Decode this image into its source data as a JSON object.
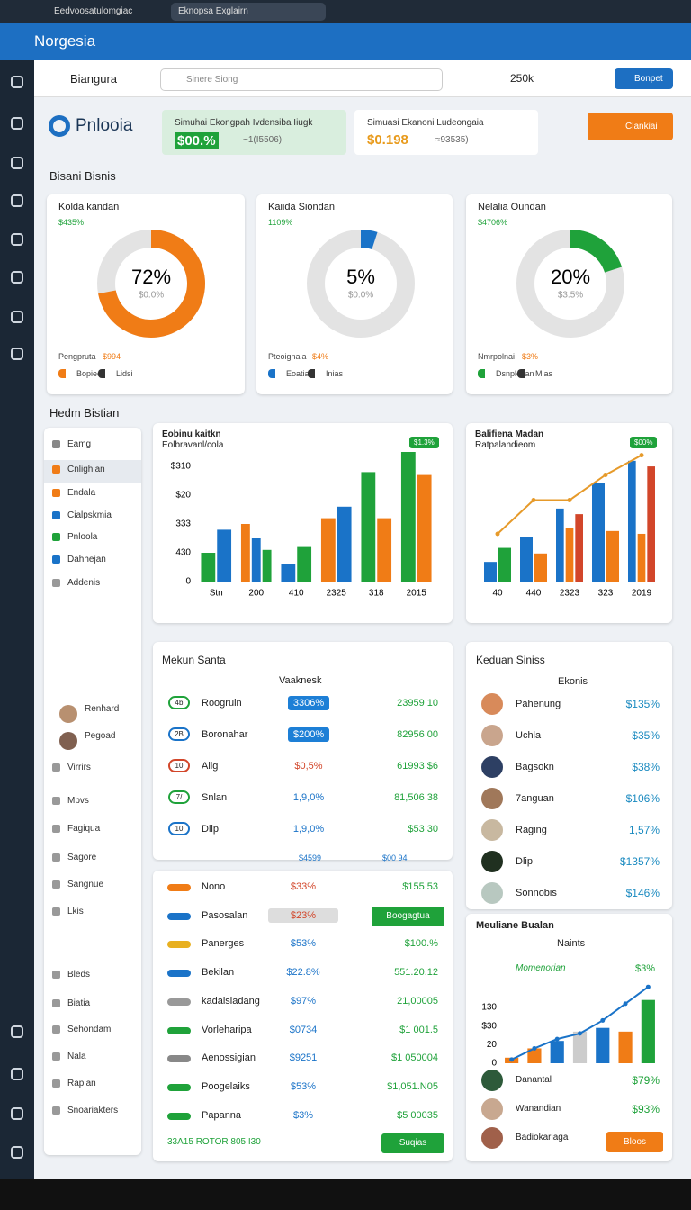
{
  "browser": {
    "tabs": [
      "Eedvoosatulomgiac",
      "Eknopsa Exglairn"
    ]
  },
  "app": {
    "name": "Norgesia"
  },
  "topbar": {
    "title": "Biangura",
    "search": "Sinere Siong",
    "balance": "250k",
    "button": "Bonpet"
  },
  "brand": {
    "name": "Pnlooia",
    "cards": [
      {
        "title": "Simuhai Ekongpah Ivdensiba Iiugk",
        "value": "$00.%",
        "sub": "~1(I5506)"
      },
      {
        "title": "Simuasi Ekanoni Ludeongaia",
        "value": "$0.198",
        "sub": "≈93535)"
      }
    ],
    "button": "Clankiai"
  },
  "sections": [
    "Bisani Bisnis",
    "Hedm Bistian"
  ],
  "donuts": [
    {
      "title": "Kolda kandan",
      "sub": "$435%",
      "value": 72,
      "value_label": "72%",
      "caption": "$0.0%",
      "color": "#f07c16",
      "footer": "Pengpruta",
      "footer_value": "$994",
      "legend": [
        "Bopiec",
        "Lidsi"
      ]
    },
    {
      "title": "Kaiida Siondan",
      "sub": "1109%",
      "value": 5,
      "value_label": "5%",
      "caption": "$0.0%",
      "color": "#1a73c8",
      "footer": "Pteoignaia",
      "footer_value": "$4%",
      "legend": [
        "Eoatia",
        "Inias"
      ]
    },
    {
      "title": "Nelalia Oundan",
      "sub": "$4706%",
      "value": 20,
      "value_label": "20%",
      "caption": "$3.5%",
      "color": "#1fa23a",
      "footer": "Nmrpolnai",
      "footer_value": "$3%",
      "legend": [
        "Dsnplesan",
        "Mias"
      ]
    }
  ],
  "bar_charts": [
    {
      "type": "bar",
      "title": "Eobinu kaitkn",
      "subtitle": "Eolbravanl/cola",
      "badge": "$1.3%",
      "categories": [
        "Stn",
        "200",
        "410",
        "2325",
        "318",
        "2015"
      ],
      "series": [
        {
          "color": "#1fa23a",
          "values": [
            1.0,
            null,
            null,
            null,
            3.8,
            4.5
          ]
        },
        {
          "color": "#f07c16",
          "values": [
            null,
            2.0,
            null,
            2.2,
            2.2,
            3.7
          ]
        },
        {
          "color": "#1a73c8",
          "values": [
            1.8,
            1.5,
            0.6,
            2.6,
            null,
            null
          ]
        },
        {
          "color": "#1fa23a",
          "values": [
            null,
            1.1,
            1.2,
            null,
            null,
            null
          ]
        }
      ],
      "ylim": [
        0,
        5
      ],
      "yticks": [
        {
          "value": 4,
          "label": "$310"
        },
        {
          "value": 3,
          "label": "$20"
        },
        {
          "value": 2,
          "label": "333"
        },
        {
          "value": 1,
          "label": "430"
        },
        0
      ]
    },
    {
      "type": "bar",
      "title": "Balifiena Madan",
      "subtitle": "Ratpalandieom",
      "badge": "$00%",
      "categories": [
        "40",
        "440",
        "2323",
        "323",
        "2019"
      ],
      "series": [
        {
          "color": "#1a73c8",
          "values": [
            0.7,
            1.6,
            2.6,
            3.5,
            4.3
          ]
        },
        {
          "color": "#1fa23a",
          "values": [
            1.2,
            null,
            null,
            null,
            null
          ]
        },
        {
          "color": "#f07c16",
          "values": [
            null,
            1.0,
            1.9,
            1.8,
            1.7
          ]
        },
        {
          "color": "#d2462a",
          "values": [
            null,
            null,
            2.4,
            null,
            4.1
          ]
        }
      ],
      "line": {
        "color": "#e69a2a",
        "values": [
          1.7,
          2.9,
          2.9,
          3.8,
          4.5
        ]
      },
      "ylim": [
        0,
        5
      ]
    }
  ],
  "table": {
    "title": "Mekun Santa",
    "header": "Vaaknesk",
    "rows": [
      [
        "4b",
        "Roogruin",
        "3306%",
        "23959 10"
      ],
      [
        "2B",
        "Boronahar",
        "$200%",
        "82956 00"
      ],
      [
        "10",
        "Allg",
        "$0,5%",
        "61993 $6"
      ],
      [
        "7/",
        "Snlan",
        "1,9,0%",
        "81,506 38"
      ],
      [
        "10",
        "Dlip",
        "1,9,0%",
        "$53 30"
      ]
    ],
    "footer": [
      "$4599",
      "$00 94"
    ]
  },
  "people": {
    "title": "Keduan Siniss",
    "header": "Ekonis",
    "rows": [
      [
        "Pahenung",
        "$135%"
      ],
      [
        "Uchla",
        "$35%"
      ],
      [
        "Bagsokn",
        "$38%"
      ],
      [
        "7anguan",
        "$106%"
      ],
      [
        "Raging",
        "1,57%"
      ],
      [
        "Dlip",
        "$1357%"
      ],
      [
        "Sonnobis",
        "$146%"
      ]
    ]
  },
  "list": {
    "rows": [
      [
        "Nono",
        "$33%",
        "$155 53"
      ],
      [
        "Pasosalan",
        "$23%",
        "Boogagtua"
      ],
      [
        "Panerges",
        "$53%",
        "$100.%"
      ],
      [
        "Bekilan",
        "$22.8%",
        "551.20.12"
      ],
      [
        "kadalsiadang",
        "$97%",
        "21,00005"
      ],
      [
        "Vorleharipa",
        "$0734",
        "$1 001.5"
      ],
      [
        "Aenossigian",
        "$9251",
        "$1 050004"
      ],
      [
        "Poogelaiks",
        "$53%",
        "$1,051.N05"
      ],
      [
        "Papanna",
        "$3%",
        "$5 00035"
      ]
    ],
    "footer": "33A15 ROTOR 805 I30",
    "button": "Suqias"
  },
  "trend": {
    "type": "bar",
    "title": "Meuliane Bualan",
    "subtitle": "Naints",
    "label": "Momenorian",
    "badge": "$3%",
    "categories": [
      null,
      null,
      null,
      null,
      null,
      null,
      null
    ],
    "values": [
      0.3,
      0.8,
      1.2,
      1.7,
      1.9,
      1.7,
      3.4
    ],
    "colors": [
      "#f07c16",
      "#f07c16",
      "#1a73c8",
      "#cccccc",
      "#1a73c8",
      "#f07c16",
      "#1fa23a"
    ],
    "line": {
      "color": "#1a73c8",
      "values": [
        0.2,
        0.8,
        1.3,
        1.6,
        2.3,
        3.2,
        4.1
      ]
    },
    "ylim": [
      0,
      4.4
    ],
    "yticks": [
      {
        "value": 3,
        "label": "130"
      },
      {
        "value": 2,
        "label": "$30"
      },
      {
        "value": 1,
        "label": "20"
      },
      0
    ],
    "people": [
      [
        "Danantal",
        "$79%"
      ],
      [
        "Wanandian",
        "$93%"
      ],
      [
        "Badiokariaga",
        null
      ]
    ],
    "button": "Bloos"
  },
  "menu": {
    "items": [
      "Eamg",
      "Cnlighian",
      "Endala",
      "Cialpskmia",
      "Pnloola",
      "Dahhejan",
      "Addenis",
      "Renhard",
      "Pegoad",
      "Virrirs",
      "Mpvs",
      "Fagiqua",
      "Sagore",
      "Sangnue",
      "Lkis",
      "Bleds",
      "Biatia",
      "Sehondam",
      "Nala",
      "Raplan",
      "Snoariakters"
    ]
  }
}
